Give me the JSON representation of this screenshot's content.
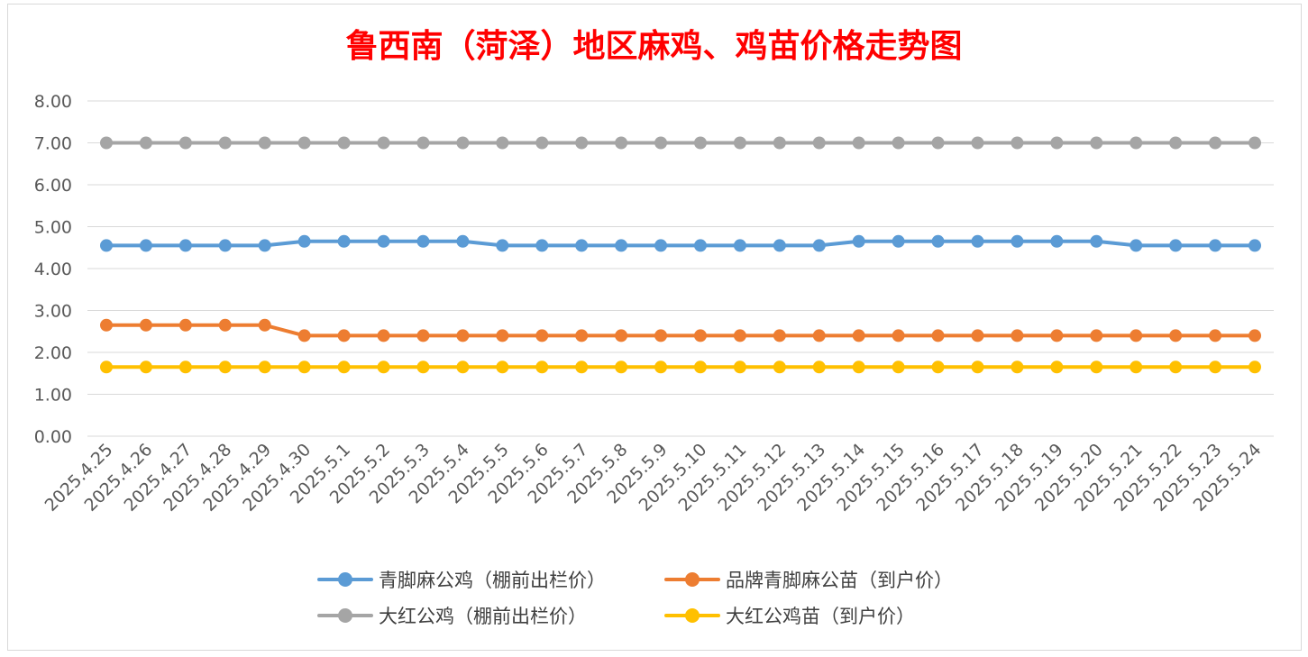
{
  "chart_data": {
    "type": "line",
    "title": "鲁西南（菏泽）地区麻鸡、鸡苗价格走势图",
    "categories": [
      "2025.4.25",
      "2025.4.26",
      "2025.4.27",
      "2025.4.28",
      "2025.4.29",
      "2025.4.30",
      "2025.5.1",
      "2025.5.2",
      "2025.5.3",
      "2025.5.4",
      "2025.5.5",
      "2025.5.6",
      "2025.5.7",
      "2025.5.8",
      "2025.5.9",
      "2025.5.10",
      "2025.5.11",
      "2025.5.12",
      "2025.5.13",
      "2025.5.14",
      "2025.5.15",
      "2025.5.16",
      "2025.5.17",
      "2025.5.18",
      "2025.5.19",
      "2025.5.20",
      "2025.5.21",
      "2025.5.22",
      "2025.5.23",
      "2025.5.24"
    ],
    "ylim": [
      0,
      8
    ],
    "yticks": [
      "0.00",
      "1.00",
      "2.00",
      "3.00",
      "4.00",
      "5.00",
      "6.00",
      "7.00",
      "8.00"
    ],
    "grid": true,
    "legend_position": "bottom",
    "series": [
      {
        "name": "青脚麻公鸡（棚前出栏价）",
        "color": "#5b9bd5",
        "values": [
          4.55,
          4.55,
          4.55,
          4.55,
          4.55,
          4.65,
          4.65,
          4.65,
          4.65,
          4.65,
          4.55,
          4.55,
          4.55,
          4.55,
          4.55,
          4.55,
          4.55,
          4.55,
          4.55,
          4.65,
          4.65,
          4.65,
          4.65,
          4.65,
          4.65,
          4.65,
          4.55,
          4.55,
          4.55,
          4.55
        ]
      },
      {
        "name": "品牌青脚麻公苗（到户价）",
        "color": "#ed7d31",
        "values": [
          2.65,
          2.65,
          2.65,
          2.65,
          2.65,
          2.4,
          2.4,
          2.4,
          2.4,
          2.4,
          2.4,
          2.4,
          2.4,
          2.4,
          2.4,
          2.4,
          2.4,
          2.4,
          2.4,
          2.4,
          2.4,
          2.4,
          2.4,
          2.4,
          2.4,
          2.4,
          2.4,
          2.4,
          2.4,
          2.4
        ]
      },
      {
        "name": "大红公鸡（棚前出栏价）",
        "color": "#a5a5a5",
        "values": [
          7,
          7,
          7,
          7,
          7,
          7,
          7,
          7,
          7,
          7,
          7,
          7,
          7,
          7,
          7,
          7,
          7,
          7,
          7,
          7,
          7,
          7,
          7,
          7,
          7,
          7,
          7,
          7,
          7,
          7
        ]
      },
      {
        "name": "大红公鸡苗（到户价）",
        "color": "#ffc000",
        "values": [
          1.65,
          1.65,
          1.65,
          1.65,
          1.65,
          1.65,
          1.65,
          1.65,
          1.65,
          1.65,
          1.65,
          1.65,
          1.65,
          1.65,
          1.65,
          1.65,
          1.65,
          1.65,
          1.65,
          1.65,
          1.65,
          1.65,
          1.65,
          1.65,
          1.65,
          1.65,
          1.65,
          1.65,
          1.65,
          1.65
        ]
      }
    ]
  }
}
